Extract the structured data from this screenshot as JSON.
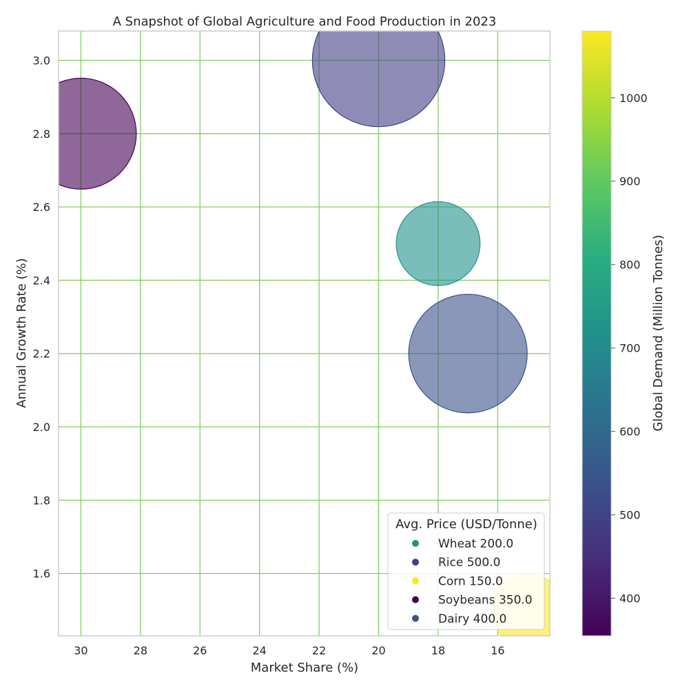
{
  "chart_data": {
    "type": "scatter",
    "title": "A Snapshot of Global Agriculture and Food Production in 2023",
    "xlabel": "Market Share (%)",
    "ylabel": "Annual Growth Rate (%)",
    "xlim": [
      30.75,
      14.25
    ],
    "ylim": [
      1.43,
      3.08
    ],
    "x_reversed": true,
    "xticks": [
      30,
      28,
      26,
      24,
      22,
      20,
      18,
      16
    ],
    "yticks": [
      1.6,
      1.8,
      2.0,
      2.2,
      2.4,
      2.6,
      2.8,
      3.0
    ],
    "grid": true,
    "grid_color": "#7fcf5f",
    "legend": {
      "title": "Avg. Price (USD/Tonne)",
      "position": "lower-right",
      "items": [
        "Wheat 200.0",
        "Rice 500.0",
        "Corn 150.0",
        "Soybeans 350.0",
        "Dairy 400.0"
      ]
    },
    "colorbar": {
      "label": "Global Demand (Million Tonnes)",
      "min": 355,
      "max": 1080,
      "ticks": [
        400,
        500,
        600,
        700,
        800,
        900,
        1000
      ],
      "colormap": "viridis"
    },
    "size_encodes": "Avg. Price (USD/Tonne)",
    "points": [
      {
        "name": "Wheat",
        "x": 18,
        "y": 2.5,
        "price": 200.0,
        "demand": 760,
        "color": "#21918c"
      },
      {
        "name": "Rice",
        "x": 20,
        "y": 3.0,
        "price": 500.0,
        "demand": 480,
        "color": "#433e85"
      },
      {
        "name": "Corn",
        "x": 15,
        "y": 1.5,
        "price": 150.0,
        "demand": 1080,
        "color": "#fde725"
      },
      {
        "name": "Soybeans",
        "x": 30,
        "y": 2.8,
        "price": 350.0,
        "demand": 355,
        "color": "#440154"
      },
      {
        "name": "Dairy",
        "x": 17,
        "y": 2.2,
        "price": 400.0,
        "demand": 530,
        "color": "#3b528b"
      }
    ]
  }
}
